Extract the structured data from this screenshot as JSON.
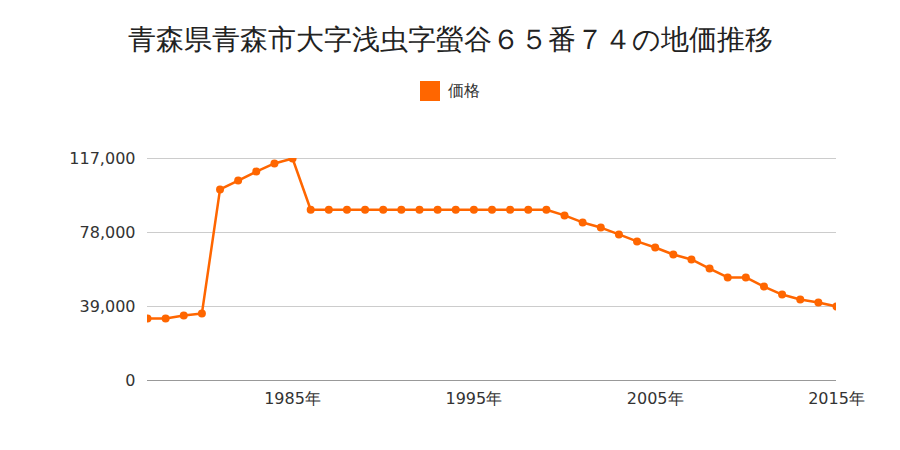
{
  "chart_data": {
    "type": "line",
    "title": "青森県青森市大字浅虫字螢谷６５番７４の地価推移",
    "x": [
      1977,
      1978,
      1979,
      1980,
      1981,
      1982,
      1983,
      1984,
      1985,
      1986,
      1987,
      1988,
      1989,
      1990,
      1991,
      1992,
      1993,
      1994,
      1995,
      1996,
      1997,
      1998,
      1999,
      2000,
      2001,
      2002,
      2003,
      2004,
      2005,
      2006,
      2007,
      2008,
      2009,
      2010,
      2011,
      2012,
      2013,
      2014,
      2015
    ],
    "series": [
      {
        "name": "価格",
        "color": "#ff6600",
        "marker": "circle",
        "values": [
          32700,
          32700,
          34300,
          35300,
          100700,
          105400,
          110100,
          114400,
          117000,
          90000,
          90000,
          90000,
          90000,
          90000,
          90000,
          90000,
          90000,
          90000,
          90000,
          90000,
          90000,
          90000,
          90000,
          87000,
          83300,
          80600,
          77000,
          73300,
          70100,
          66400,
          63800,
          59000,
          54300,
          54300,
          49500,
          45300,
          42700,
          41100,
          39000
        ]
      }
    ],
    "xlim": [
      1977,
      2015
    ],
    "xticks": [
      {
        "value": 1985,
        "label": "1985年"
      },
      {
        "value": 1995,
        "label": "1995年"
      },
      {
        "value": 2005,
        "label": "2005年"
      },
      {
        "value": 2015,
        "label": "2015年"
      }
    ],
    "ylim": [
      0,
      117000
    ],
    "yticks": [
      0,
      {
        "value": 39000,
        "label": "39,000"
      },
      {
        "value": 78000,
        "label": "78,000"
      },
      {
        "value": 117000,
        "label": "117,000"
      }
    ],
    "grid": true,
    "legend": "top"
  }
}
